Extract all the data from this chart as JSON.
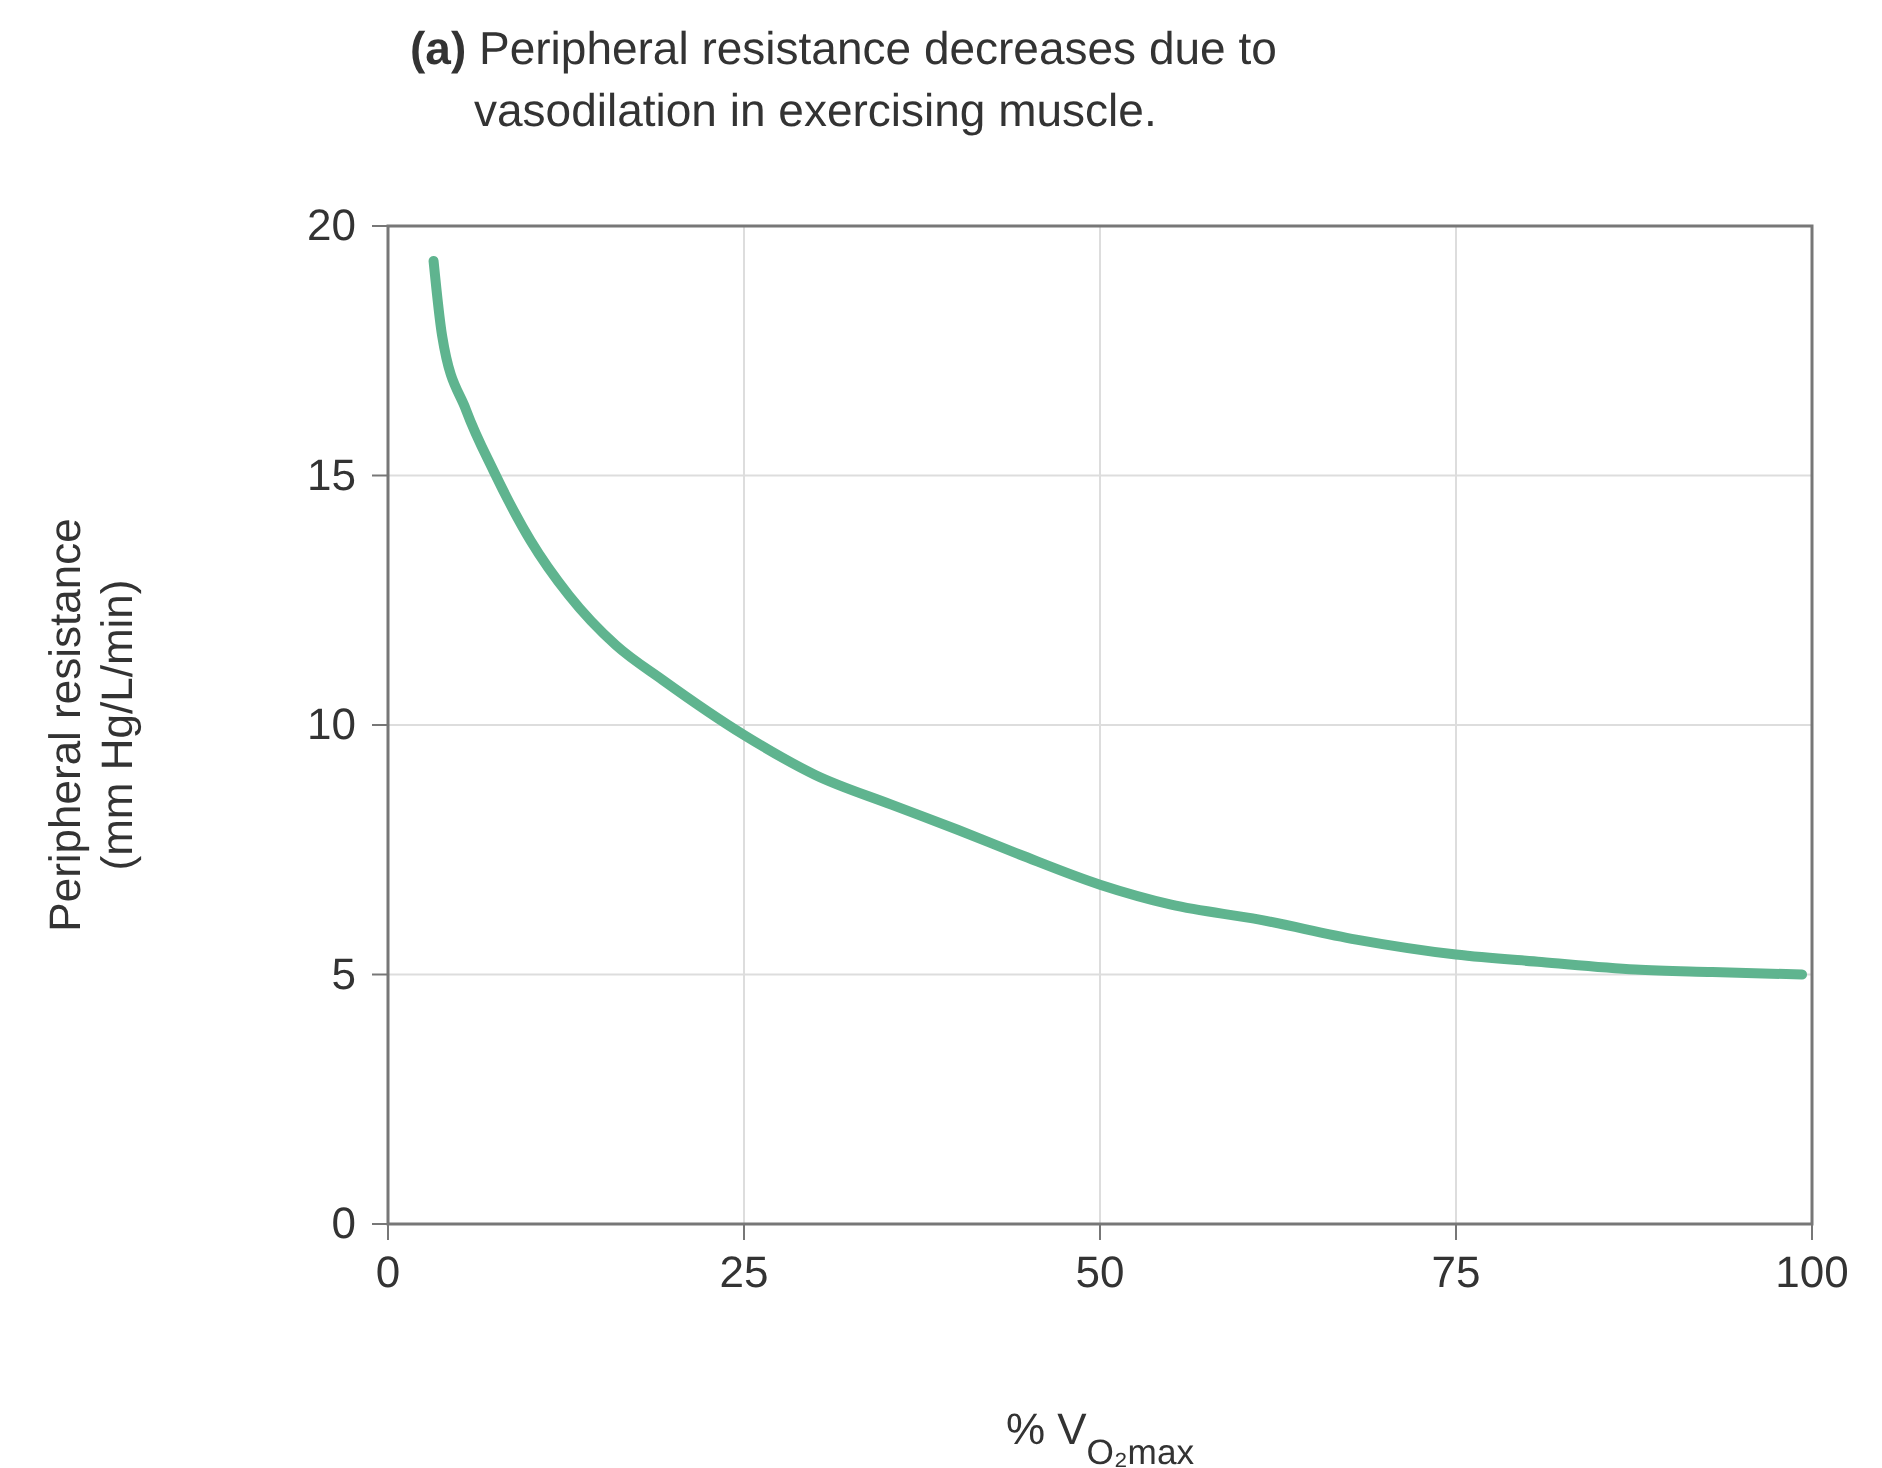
{
  "chart_data": {
    "type": "line",
    "title": "(a) Peripheral resistance decreases due to vasodilation in exercising muscle.",
    "xlabel": "% V$_{O₂max}$",
    "ylabel": "Peripheral resistance (mm Hg/L/min)",
    "x": [
      3.2,
      3.8,
      5.5,
      7.4,
      10,
      12.7,
      16,
      19.3,
      25,
      30,
      35.4,
      40,
      44.4,
      50,
      55,
      61.2,
      68,
      75,
      81,
      87.6,
      93,
      99.3
    ],
    "series": [
      {
        "color": "#5fb48f",
        "values": [
          19.3,
          17.8,
          16.3,
          15.1,
          13.7,
          12.6,
          11.6,
          10.9,
          9.8,
          9.0,
          8.4,
          7.9,
          7.4,
          6.8,
          6.4,
          6.1,
          5.7,
          5.4,
          5.25,
          5.1,
          5.05,
          5.0
        ]
      }
    ],
    "xlim": [
      0,
      100
    ],
    "ylim": [
      0,
      20
    ],
    "xticks": [
      0,
      25,
      50,
      75,
      100
    ],
    "yticks": [
      0,
      5,
      10,
      15,
      20
    ],
    "grid": true,
    "line_style": "solid",
    "marker": "none"
  }
}
